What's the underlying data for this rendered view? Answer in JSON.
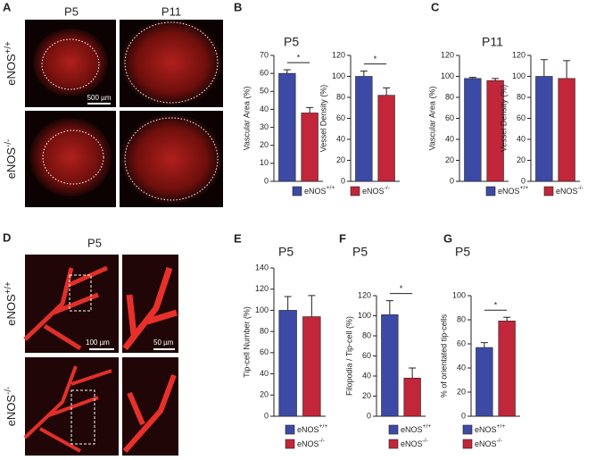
{
  "figure": {
    "panels": [
      "A",
      "B",
      "C",
      "D",
      "E",
      "F",
      "G"
    ],
    "a_columns": [
      "P5",
      "P11"
    ],
    "a_rows": [
      "eNOS+/+",
      "eNOS-/-"
    ],
    "a_scale": "500 µm",
    "d_title": "P5",
    "d_rows": [
      "eNOS+/+",
      "eNOS-/-"
    ],
    "d_scales": [
      "100 µm",
      "50 µm"
    ]
  },
  "chart_data": [
    {
      "type": "bar",
      "title": "P5",
      "ylabel": "Vascular Area (%)",
      "ylim": [
        0,
        70
      ],
      "yticks": [
        0,
        10,
        20,
        30,
        40,
        50,
        60,
        70
      ],
      "series": [
        {
          "name": "eNOS+/+",
          "color": "#3c4aa5",
          "values": [
            60
          ],
          "errors": [
            2
          ]
        },
        {
          "name": "eNOS-/-",
          "color": "#c1263a",
          "values": [
            38
          ],
          "errors": [
            3
          ]
        }
      ],
      "annotations": [
        "*"
      ],
      "legend": true
    },
    {
      "type": "bar",
      "ylabel": "Vessel Density (%)",
      "ylim": [
        0,
        120
      ],
      "yticks": [
        0,
        20,
        40,
        60,
        80,
        100,
        120
      ],
      "series": [
        {
          "color": "#3c4aa5",
          "values": [
            100
          ],
          "errors": [
            5
          ]
        },
        {
          "color": "#c1263a",
          "values": [
            82
          ],
          "errors": [
            7
          ]
        }
      ],
      "annotations": [
        "*"
      ],
      "legend": false
    },
    {
      "type": "bar",
      "title": "P11",
      "ylabel": "Vascular Area (%)",
      "ylim": [
        0,
        120
      ],
      "yticks": [
        0,
        20,
        40,
        60,
        80,
        100,
        120
      ],
      "series": [
        {
          "name": "eNOS+/+",
          "color": "#3c4aa5",
          "values": [
            98
          ],
          "errors": [
            1
          ]
        },
        {
          "name": "eNOS-/-",
          "color": "#c1263a",
          "values": [
            96
          ],
          "errors": [
            2
          ]
        }
      ],
      "legend": true
    },
    {
      "type": "bar",
      "ylabel": "Vessel Density (%)",
      "ylim": [
        0,
        120
      ],
      "yticks": [
        0,
        20,
        40,
        60,
        80,
        100,
        120
      ],
      "series": [
        {
          "color": "#3c4aa5",
          "values": [
            100
          ],
          "errors": [
            16
          ]
        },
        {
          "color": "#c1263a",
          "values": [
            98
          ],
          "errors": [
            17
          ]
        }
      ],
      "legend": false
    },
    {
      "type": "bar",
      "title": "P5",
      "ylabel": "Tip-cell Number (%)",
      "ylim": [
        0,
        140
      ],
      "yticks": [
        0,
        20,
        40,
        60,
        80,
        100,
        120,
        140
      ],
      "series": [
        {
          "name": "eNOS+/+",
          "color": "#3c4aa5",
          "values": [
            100
          ],
          "errors": [
            13
          ]
        },
        {
          "name": "eNOS-/-",
          "color": "#c1263a",
          "values": [
            94
          ],
          "errors": [
            20
          ]
        }
      ],
      "legend": true
    },
    {
      "type": "bar",
      "title": "P5",
      "ylabel": "Filopodia / Tip-cell (%)",
      "ylim": [
        0,
        120
      ],
      "yticks": [
        0,
        20,
        40,
        60,
        80,
        100,
        120
      ],
      "series": [
        {
          "name": "eNOS+/+",
          "color": "#3c4aa5",
          "values": [
            101
          ],
          "errors": [
            14
          ]
        },
        {
          "name": "eNOS-/-",
          "color": "#c1263a",
          "values": [
            38
          ],
          "errors": [
            10
          ]
        }
      ],
      "annotations": [
        "*"
      ],
      "legend": true
    },
    {
      "type": "bar",
      "title": "P5",
      "ylabel": "% of orientated tip-cells",
      "ylim": [
        0,
        100
      ],
      "yticks": [
        0,
        20,
        40,
        60,
        80,
        100
      ],
      "series": [
        {
          "name": "eNOS+/+",
          "color": "#3c4aa5",
          "values": [
            57
          ],
          "errors": [
            4
          ]
        },
        {
          "name": "eNOS-/-",
          "color": "#c1263a",
          "values": [
            79
          ],
          "errors": [
            3
          ]
        }
      ],
      "annotations": [
        "*"
      ],
      "legend": true
    }
  ]
}
